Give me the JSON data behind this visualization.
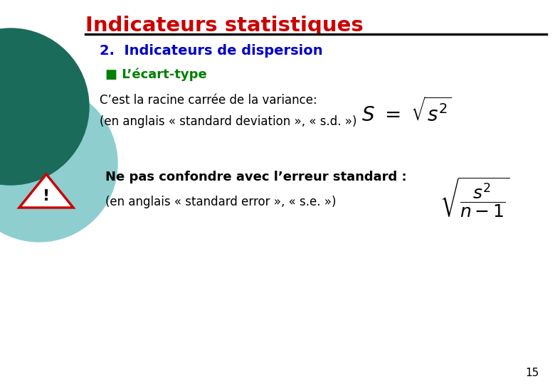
{
  "title": "Indicateurs statistiques",
  "title_color": "#cc0000",
  "subtitle": "2.  Indicateurs de dispersion",
  "subtitle_color": "#0000cc",
  "bullet_text": "■ L’écart-type",
  "bullet_color": "#008000",
  "line1": "C’est la racine carrée de la variance: ",
  "line2": "(en anglais « standard deviation », « s.d. »)",
  "warning_text": "Ne pas confondre avec l’erreur standard :",
  "line3": "(en anglais « standard error », « s.e. »)",
  "page_number": "15",
  "bg_color": "#ffffff",
  "dark_circle_color": "#1a6b5a",
  "light_circle_color": "#8ecece",
  "separator_color": "#111111",
  "text_color": "#000000"
}
